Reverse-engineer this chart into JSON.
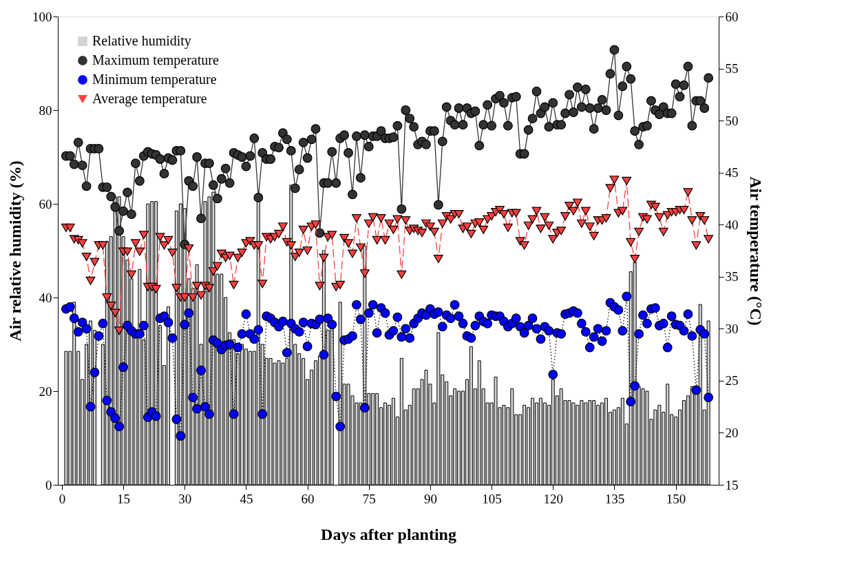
{
  "chart_data": {
    "type": "bar",
    "xlabel": "Days after planting",
    "ylabel": "Air relative humidity (%)",
    "y2label": "Air temperature (°C)",
    "x": [
      1,
      2,
      3,
      4,
      5,
      6,
      7,
      8,
      9,
      10,
      11,
      12,
      13,
      14,
      15,
      16,
      17,
      18,
      19,
      20,
      21,
      22,
      23,
      24,
      25,
      26,
      27,
      28,
      29,
      30,
      31,
      32,
      33,
      34,
      35,
      36,
      37,
      38,
      39,
      40,
      41,
      42,
      43,
      44,
      45,
      46,
      47,
      48,
      49,
      50,
      51,
      52,
      53,
      54,
      55,
      56,
      57,
      58,
      59,
      60,
      61,
      62,
      63,
      64,
      65,
      66,
      67,
      68,
      69,
      70,
      71,
      72,
      73,
      74,
      75,
      76,
      77,
      78,
      79,
      80,
      81,
      82,
      83,
      84,
      85,
      86,
      87,
      88,
      89,
      90,
      91,
      92,
      93,
      94,
      95,
      96,
      97,
      98,
      99,
      100,
      101,
      102,
      103,
      104,
      105,
      106,
      107,
      108,
      109,
      110,
      111,
      112,
      113,
      114,
      115,
      116,
      117,
      118,
      119,
      120,
      121,
      122,
      123,
      124,
      125,
      126,
      127,
      128,
      129,
      130,
      131,
      132,
      133,
      134,
      135,
      136,
      137,
      138,
      139,
      140,
      141,
      142,
      143,
      144,
      145,
      146,
      147,
      148,
      149,
      150,
      151,
      152,
      153,
      154,
      155,
      156,
      157,
      158
    ],
    "xlim": [
      -1,
      160.5
    ],
    "xticks": [
      0,
      15,
      30,
      45,
      60,
      75,
      90,
      105,
      120,
      135,
      150
    ],
    "ylim": [
      0,
      100
    ],
    "yticks": [
      0,
      20,
      40,
      60,
      80,
      100
    ],
    "y2lim": [
      15,
      60
    ],
    "y2ticks": [
      15,
      20,
      25,
      30,
      35,
      40,
      45,
      50,
      55,
      60
    ],
    "legend": "top left",
    "grid": false,
    "series": [
      {
        "name": "Relative humidity",
        "axis": "y",
        "color": "#d3d3d3",
        "values": [
          28.5,
          28.5,
          39,
          28.5,
          22.5,
          30,
          35,
          33,
          null,
          30,
          52,
          53,
          61.5,
          61.5,
          53,
          48,
          44,
          32,
          46,
          31,
          60,
          60.5,
          60.5,
          34,
          25.5,
          38,
          null,
          58.5,
          60,
          59,
          44,
          42,
          47,
          30,
          60.5,
          61.5,
          62.5,
          45,
          45,
          40,
          32.5,
          31,
          28,
          30,
          29,
          28.5,
          28.5,
          61,
          30,
          27,
          27,
          26,
          26.5,
          26,
          27,
          64,
          30,
          28,
          27,
          22.5,
          24.5,
          26.5,
          27.5,
          50,
          33,
          33.5,
          null,
          39,
          21.5,
          21.5,
          19,
          17.5,
          17.5,
          51,
          19.5,
          19.5,
          19.5,
          16.5,
          17.5,
          17,
          18.5,
          14.5,
          27,
          16,
          17,
          20.5,
          20.5,
          22.5,
          24.5,
          21.5,
          17.5,
          32.5,
          23.5,
          22,
          19,
          20.5,
          20,
          20,
          22.5,
          29.5,
          20.5,
          26.5,
          20.5,
          17.5,
          17.5,
          23,
          16.5,
          17,
          16.5,
          20.5,
          15,
          15,
          17,
          16.5,
          18.5,
          17.5,
          18.5,
          17.5,
          17,
          22.5,
          19,
          20.5,
          18,
          18,
          17.5,
          17,
          18,
          17.5,
          18,
          18,
          17,
          17.5,
          18.5,
          15.5,
          16,
          16.5,
          18.5,
          13,
          45.5,
          47.5,
          21,
          20.5,
          20,
          14,
          16,
          17,
          15.5,
          21.5,
          15,
          14.5,
          16,
          18,
          19,
          21,
          19.5,
          38.5,
          16,
          35
        ]
      },
      {
        "name": "Maximum temperature",
        "type": "line",
        "axis": "y2",
        "color": "#333333",
        "marker": "circle",
        "line_style": "solid",
        "values": [
          46.6,
          46.6,
          45.8,
          47.9,
          45.7,
          43.7,
          47.3,
          47.3,
          47.3,
          43.6,
          43.6,
          42.7,
          41.7,
          39.4,
          41.3,
          43.1,
          41.0,
          45.9,
          44.2,
          46.6,
          47.0,
          46.8,
          46.7,
          46.3,
          44.9,
          46.4,
          46.2,
          47.1,
          47.1,
          38.1,
          44.2,
          43.7,
          46.5,
          40.6,
          45.9,
          45.9,
          43.8,
          42.5,
          44.4,
          45.4,
          44.0,
          46.9,
          46.7,
          46.5,
          45.6,
          46.6,
          48.3,
          42.6,
          46.9,
          46.3,
          46.3,
          47.5,
          47.4,
          48.8,
          48.2,
          47.1,
          43.5,
          45.3,
          47.9,
          46.4,
          48.2,
          49.2,
          39.2,
          44.0,
          44.0,
          47.0,
          44.0,
          48.3,
          48.6,
          46.9,
          42.9,
          48.5,
          44.5,
          48.6,
          47.5,
          48.5,
          48.5,
          49.0,
          48.3,
          48.3,
          48.4,
          49.5,
          41.5,
          51.0,
          50.2,
          49.4,
          47.7,
          48.0,
          47.7,
          49.0,
          49.0,
          41.9,
          48.0,
          51.3,
          50.0,
          49.6,
          51.2,
          49.6,
          51.2,
          50.7,
          50.9,
          47.6,
          49.6,
          51.5,
          49.5,
          52.1,
          52.4,
          51.7,
          49.5,
          52.2,
          52.3,
          46.8,
          46.8,
          49.1,
          50.2,
          52.8,
          50.7,
          51.3,
          49.4,
          51.7,
          49.6,
          49.6,
          50.7,
          52.5,
          50.8,
          53.2,
          51.3,
          53.0,
          51.2,
          49.2,
          51.2,
          52.0,
          51.0,
          54.5,
          56.8,
          50.5,
          53.3,
          55.2,
          54.0,
          49.0,
          47.7,
          49.4,
          49.5,
          51.9,
          51.0,
          50.6,
          51.3,
          50.7,
          50.7,
          53.5,
          52.3,
          53.4,
          55.2,
          49.5,
          51.9,
          51.9,
          51.2,
          54.1
        ]
      },
      {
        "name": "Minimum temperature",
        "type": "line",
        "axis": "y2",
        "color": "#0000ff",
        "marker": "circle",
        "line_style": "dotted",
        "values": [
          31.9,
          32.1,
          31.0,
          29.7,
          30.6,
          30.0,
          22.5,
          25.8,
          29.3,
          30.5,
          23.1,
          22.0,
          21.4,
          20.6,
          26.3,
          30.3,
          29.8,
          29.5,
          29.5,
          30.3,
          21.5,
          22.0,
          21.6,
          31.0,
          31.2,
          30.6,
          29.1,
          21.3,
          19.7,
          30.4,
          31.5,
          23.4,
          22.3,
          26.0,
          22.5,
          21.8,
          28.9,
          28.6,
          28.0,
          28.4,
          28.5,
          21.8,
          28.2,
          29.5,
          31.4,
          29.5,
          29.0,
          29.9,
          21.8,
          31.2,
          31.0,
          30.6,
          30.2,
          30.7,
          27.7,
          30.5,
          30.0,
          29.7,
          30.6,
          28.3,
          30.5,
          30.4,
          30.9,
          27.5,
          31.0,
          30.4,
          23.5,
          20.6,
          28.9,
          29.0,
          29.3,
          32.3,
          30.9,
          22.4,
          31.5,
          32.3,
          29.6,
          32.0,
          31.5,
          29.4,
          29.8,
          31.1,
          29.2,
          30.0,
          29.1,
          30.5,
          31.0,
          31.5,
          31.3,
          31.9,
          31.4,
          31.6,
          30.2,
          31.3,
          31.0,
          32.3,
          31.2,
          30.5,
          29.3,
          29.1,
          30.3,
          31.2,
          30.7,
          30.5,
          31.3,
          31.2,
          31.2,
          30.7,
          30.2,
          30.5,
          31.0,
          30.2,
          29.6,
          30.3,
          31.0,
          30.0,
          29.0,
          30.2,
          29.8,
          25.6,
          29.6,
          29.5,
          31.4,
          31.5,
          31.7,
          31.5,
          30.5,
          29.7,
          28.2,
          29.2,
          30.0,
          28.8,
          29.8,
          32.5,
          32.1,
          31.8,
          29.8,
          33.1,
          23.0,
          24.5,
          29.5,
          31.3,
          30.5,
          31.9,
          32.0,
          30.3,
          30.5,
          28.2,
          31.2,
          30.4,
          30.3,
          29.8,
          31.4,
          29.3,
          24.1,
          29.9,
          29.5,
          23.4
        ]
      },
      {
        "name": "Average temperature",
        "type": "line",
        "axis": "y2",
        "color": "#ff4040",
        "marker": "triangle",
        "line_style": "dashed",
        "values": [
          39.7,
          39.7,
          38.6,
          38.5,
          38.2,
          36.9,
          34.6,
          36.4,
          38.0,
          38.0,
          33.0,
          32.2,
          31.5,
          29.8,
          37.4,
          37.4,
          35.2,
          38.2,
          37.4,
          39.0,
          34.0,
          34.0,
          33.8,
          38.8,
          38.0,
          38.5,
          37.3,
          33.9,
          33.0,
          33.0,
          37.7,
          33.0,
          34.1,
          33.2,
          34.1,
          33.9,
          35.5,
          36.0,
          37.2,
          36.8,
          37.0,
          34.2,
          36.8,
          37.3,
          38.2,
          38.4,
          38.0,
          38.0,
          34.3,
          38.8,
          38.6,
          38.8,
          39.1,
          39.8,
          38.3,
          38.0,
          36.9,
          37.3,
          39.5,
          37.5,
          39.8,
          40.0,
          34.1,
          36.8,
          38.8,
          39.0,
          34.0,
          34.2,
          38.7,
          38.2,
          37.2,
          40.6,
          37.8,
          35.3,
          40.1,
          40.7,
          38.5,
          40.6,
          38.5,
          40.1,
          39.5,
          40.5,
          35.2,
          40.4,
          39.4,
          39.6,
          39.4,
          39.2,
          40.1,
          39.8,
          39.3,
          36.7,
          40.1,
          40.8,
          40.5,
          41.0,
          41.0,
          39.6,
          39.8,
          39.1,
          40.1,
          40.2,
          39.5,
          40.5,
          40.8,
          41.2,
          41.4,
          41.0,
          39.7,
          41.1,
          41.1,
          38.4,
          38.0,
          39.9,
          40.5,
          41.3,
          39.6,
          40.7,
          39.9,
          38.6,
          39.2,
          39.4,
          40.8,
          41.8,
          41.3,
          42.1,
          40.1,
          41.3,
          39.8,
          38.9,
          40.4,
          40.4,
          40.6,
          43.5,
          44.3,
          41.1,
          41.3,
          44.2,
          38.3,
          36.7,
          39.3,
          40.7,
          40.5,
          41.9,
          41.7,
          40.7,
          39.3,
          40.9,
          41.2,
          41.2,
          41.4,
          41.4,
          43.1,
          40.4,
          38.0,
          40.8,
          40.4,
          38.6
        ]
      }
    ]
  }
}
